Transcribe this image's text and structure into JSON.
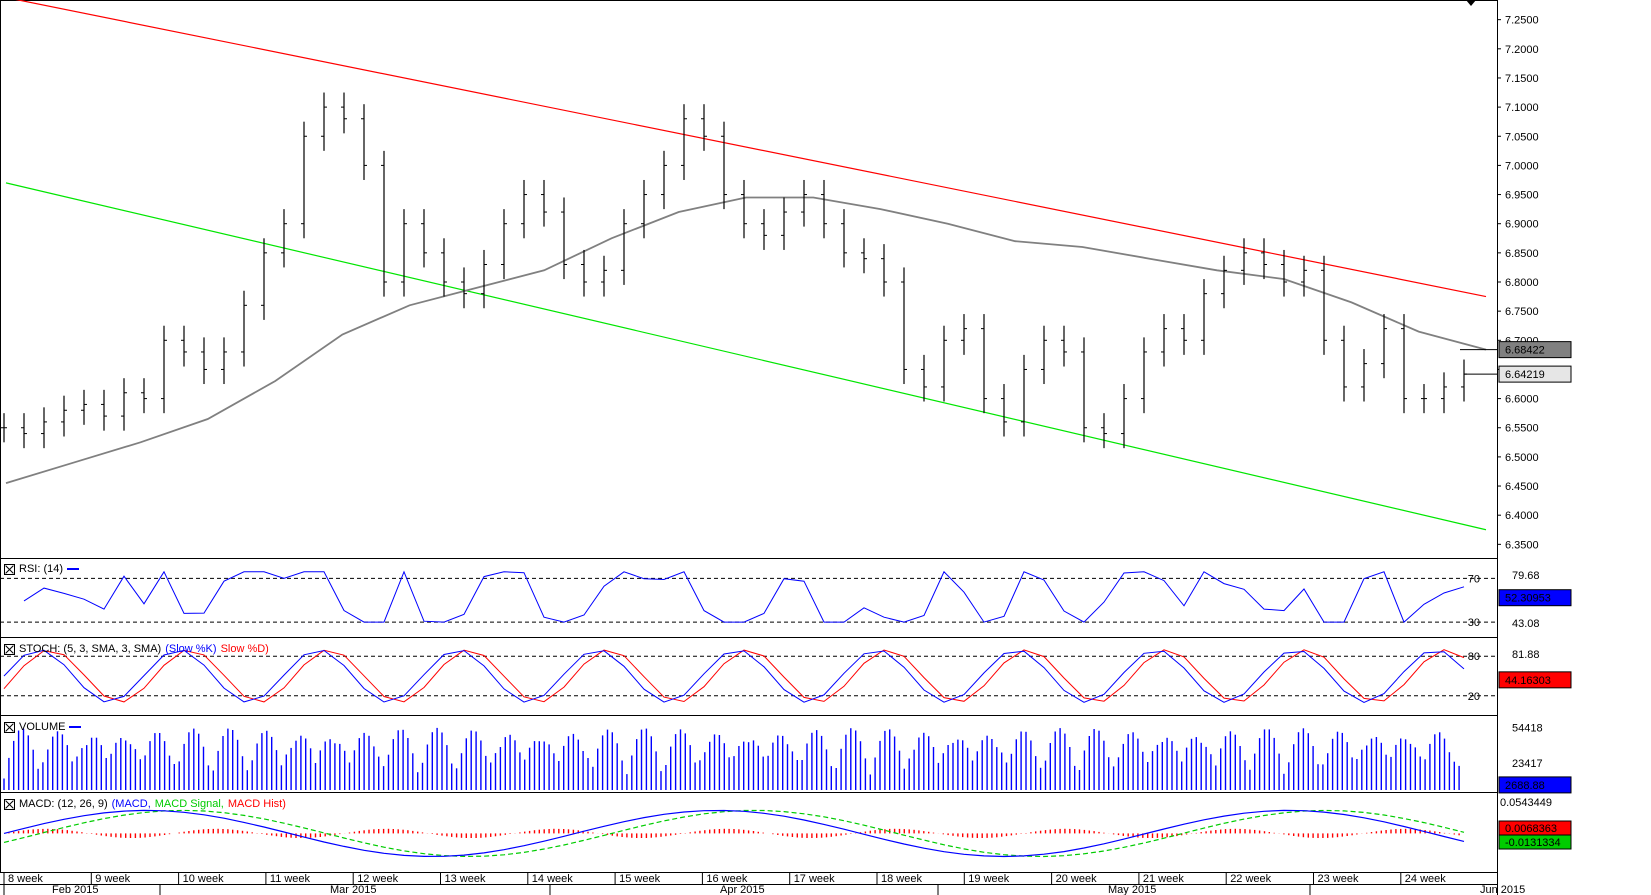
{
  "colors": {
    "channel_upper": "#ff0000",
    "channel_lower": "#00e600",
    "moving_average": "#808080",
    "price_bars": "#000000",
    "rsi": "#0000ff",
    "stoch_k": "#0000ff",
    "stoch_d": "#ff0000",
    "volume": "#0000ff",
    "macd": "#0000ff",
    "macd_signal": "#00cc00",
    "macd_hist": "#ff0000"
  },
  "panels": {
    "rsi": {
      "title": "RSI: (14)",
      "levels": [
        "70",
        "30"
      ],
      "scale": [
        "79.68",
        "43.08"
      ],
      "value": "52.30953"
    },
    "stoch": {
      "title_prefix": "STOCH: (5, 3, SMA, 3, SMA)",
      "k_name": "(Slow %K)",
      "d_name": "Slow %D)",
      "levels": [
        "80",
        "20"
      ],
      "scale": [
        "81.88"
      ],
      "value": "44.16303"
    },
    "volume": {
      "title": "VOLUME",
      "scale": [
        "54418",
        "23417"
      ],
      "value": "2688.88"
    },
    "macd": {
      "title_prefix": "MACD: (12, 26, 9)",
      "macd_name": "(MACD,",
      "signal_name": "MACD Signal,",
      "hist_name": "MACD Hist)",
      "scale": [
        "0.0543449"
      ],
      "value_hist": "0.0068363",
      "value_macd": "-0.0131334"
    }
  },
  "price_axis": {
    "ticks": [
      "7.2500",
      "7.2000",
      "7.1500",
      "7.1000",
      "7.0500",
      "7.0000",
      "6.9500",
      "6.9000",
      "6.8500",
      "6.8000",
      "6.7500",
      "6.7000",
      "6.6500",
      "6.6000",
      "6.5500",
      "6.5000",
      "6.4500",
      "6.4000",
      "6.3500"
    ],
    "ma_value_label": "6.68422",
    "last_price_label": "6.64219"
  },
  "time_axis": {
    "weeks": [
      "8 week",
      "9 week",
      "10 week",
      "11 week",
      "12 week",
      "13 week",
      "14 week",
      "15 week",
      "16 week",
      "17 week",
      "18 week",
      "19 week",
      "20 week",
      "21 week",
      "22 week",
      "23 week",
      "24 week"
    ],
    "months": [
      "Feb 2015",
      "Mar 2015",
      "Apr 2015",
      "May 2015",
      "Jun 2015"
    ]
  },
  "chart_data": {
    "type": "candlestick",
    "title": "",
    "y_range": [
      6.33,
      7.27
    ],
    "trend_channel": {
      "upper": [
        [
          0,
          7.288
        ],
        [
          88,
          6.775
        ]
      ],
      "lower": [
        [
          0,
          6.97
        ],
        [
          88,
          6.375
        ]
      ]
    },
    "moving_average": [
      [
        0,
        6.455
      ],
      [
        4,
        6.49
      ],
      [
        8,
        6.525
      ],
      [
        12,
        6.565
      ],
      [
        16,
        6.63
      ],
      [
        20,
        6.71
      ],
      [
        24,
        6.76
      ],
      [
        28,
        6.79
      ],
      [
        32,
        6.82
      ],
      [
        36,
        6.875
      ],
      [
        40,
        6.92
      ],
      [
        44,
        6.945
      ],
      [
        48,
        6.945
      ],
      [
        52,
        6.925
      ],
      [
        56,
        6.9
      ],
      [
        60,
        6.87
      ],
      [
        64,
        6.86
      ],
      [
        68,
        6.84
      ],
      [
        72,
        6.82
      ],
      [
        76,
        6.805
      ],
      [
        80,
        6.765
      ],
      [
        84,
        6.715
      ],
      [
        88,
        6.684
      ]
    ],
    "closes": [
      6.55,
      6.54,
      6.56,
      6.58,
      6.59,
      6.57,
      6.61,
      6.6,
      6.7,
      6.68,
      6.65,
      6.68,
      6.76,
      6.85,
      6.9,
      7.05,
      7.1,
      7.08,
      7.0,
      6.8,
      6.9,
      6.85,
      6.8,
      6.78,
      6.83,
      6.9,
      6.95,
      6.92,
      6.83,
      6.8,
      6.82,
      6.9,
      6.95,
      7.0,
      7.08,
      7.05,
      6.95,
      6.9,
      6.88,
      6.92,
      6.95,
      6.9,
      6.85,
      6.84,
      6.8,
      6.65,
      6.62,
      6.7,
      6.72,
      6.6,
      6.56,
      6.65,
      6.7,
      6.68,
      6.55,
      6.54,
      6.6,
      6.68,
      6.72,
      6.7,
      6.78,
      6.82,
      6.85,
      6.83,
      6.8,
      6.82,
      6.7,
      6.62,
      6.66,
      6.72,
      6.6,
      6.6,
      6.62,
      6.642
    ],
    "rsi_levels": [
      70,
      30
    ],
    "stoch_levels": [
      80,
      20
    ],
    "last_rsi": 52.30953,
    "last_stoch_k": 44.16303,
    "last_volume": 2688.88,
    "last_macd_hist": 0.0068363,
    "last_macd": -0.0131334
  }
}
